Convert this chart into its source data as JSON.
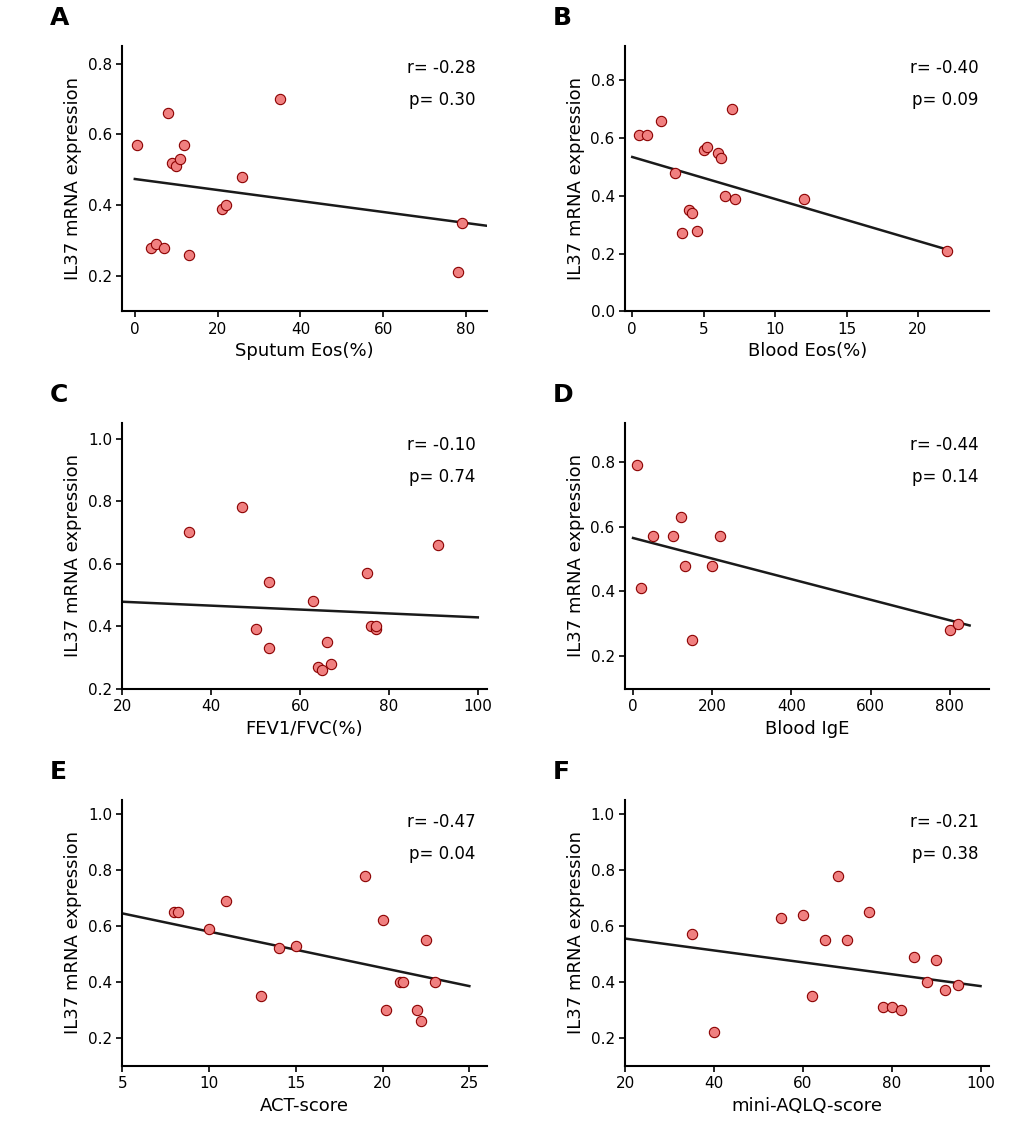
{
  "panels": [
    {
      "label": "A",
      "xlabel": "Sputum Eos(%)",
      "ylabel": "IL37 mRNA expression",
      "r_text": "r= -0.28",
      "p_text": "p= 0.30",
      "xlim": [
        -3,
        85
      ],
      "ylim": [
        0.1,
        0.85
      ],
      "xticks": [
        0,
        20,
        40,
        60,
        80
      ],
      "yticks": [
        0.2,
        0.4,
        0.6,
        0.8
      ],
      "x": [
        0.5,
        4,
        5,
        7,
        8,
        9,
        10,
        11,
        12,
        13,
        21,
        22,
        26,
        35,
        78,
        79
      ],
      "y": [
        0.57,
        0.28,
        0.29,
        0.28,
        0.66,
        0.52,
        0.51,
        0.53,
        0.57,
        0.26,
        0.39,
        0.4,
        0.48,
        0.7,
        0.21,
        0.35
      ],
      "line_x": [
        0,
        85
      ],
      "line_y_start": 0.474,
      "line_y_end": 0.342
    },
    {
      "label": "B",
      "xlabel": "Blood Eos(%)",
      "ylabel": "IL37 mRNA expression",
      "r_text": "r= -0.40",
      "p_text": "p= 0.09",
      "xlim": [
        -0.5,
        25
      ],
      "ylim": [
        0.0,
        0.92
      ],
      "xticks": [
        0,
        5,
        10,
        15,
        20
      ],
      "yticks": [
        0.0,
        0.2,
        0.4,
        0.6,
        0.8
      ],
      "x": [
        0.5,
        1.0,
        2.0,
        3.0,
        3.5,
        4.0,
        4.2,
        4.5,
        5.0,
        5.2,
        6.0,
        6.2,
        6.5,
        7.0,
        7.2,
        12.0,
        22.0
      ],
      "y": [
        0.61,
        0.61,
        0.66,
        0.48,
        0.27,
        0.35,
        0.34,
        0.28,
        0.56,
        0.57,
        0.55,
        0.53,
        0.4,
        0.7,
        0.39,
        0.39,
        0.21
      ],
      "line_x": [
        0,
        22
      ],
      "line_y_start": 0.535,
      "line_y_end": 0.215
    },
    {
      "label": "C",
      "xlabel": "FEV1/FVC(%)",
      "ylabel": "IL37 mRNA expression",
      "r_text": "r= -0.10",
      "p_text": "p= 0.74",
      "xlim": [
        20,
        102
      ],
      "ylim": [
        0.2,
        1.05
      ],
      "xticks": [
        20,
        40,
        60,
        80,
        100
      ],
      "yticks": [
        0.2,
        0.4,
        0.6,
        0.8,
        1.0
      ],
      "x": [
        35,
        47,
        50,
        53,
        53,
        63,
        64,
        65,
        66,
        67,
        75,
        76,
        77,
        77,
        91
      ],
      "y": [
        0.7,
        0.78,
        0.39,
        0.33,
        0.54,
        0.48,
        0.27,
        0.26,
        0.35,
        0.28,
        0.57,
        0.4,
        0.39,
        0.4,
        0.66
      ],
      "line_x": [
        20,
        100
      ],
      "line_y_start": 0.478,
      "line_y_end": 0.428
    },
    {
      "label": "D",
      "xlabel": "Blood IgE",
      "ylabel": "IL37 mRNA expression",
      "r_text": "r= -0.44",
      "p_text": "p= 0.14",
      "xlim": [
        -20,
        900
      ],
      "ylim": [
        0.1,
        0.92
      ],
      "xticks": [
        0,
        200,
        400,
        600,
        800
      ],
      "yticks": [
        0.2,
        0.4,
        0.6,
        0.8
      ],
      "x": [
        10,
        20,
        50,
        100,
        120,
        130,
        150,
        200,
        220,
        800,
        820
      ],
      "y": [
        0.79,
        0.41,
        0.57,
        0.57,
        0.63,
        0.48,
        0.25,
        0.48,
        0.57,
        0.28,
        0.3
      ],
      "line_x": [
        0,
        850
      ],
      "line_y_start": 0.565,
      "line_y_end": 0.295
    },
    {
      "label": "E",
      "xlabel": "ACT-score",
      "ylabel": "IL37 mRNA expression",
      "r_text": "r= -0.47",
      "p_text": "p= 0.04",
      "xlim": [
        5,
        26
      ],
      "ylim": [
        0.1,
        1.05
      ],
      "xticks": [
        5,
        10,
        15,
        20,
        25
      ],
      "yticks": [
        0.2,
        0.4,
        0.6,
        0.8,
        1.0
      ],
      "x": [
        8,
        8.2,
        10,
        11,
        13,
        14,
        15,
        19,
        20,
        20.2,
        21,
        21.2,
        22,
        22.2,
        22.5,
        23
      ],
      "y": [
        0.65,
        0.65,
        0.59,
        0.69,
        0.35,
        0.52,
        0.53,
        0.78,
        0.62,
        0.3,
        0.4,
        0.4,
        0.3,
        0.26,
        0.55,
        0.4
      ],
      "line_x": [
        5,
        25
      ],
      "line_y_start": 0.645,
      "line_y_end": 0.385
    },
    {
      "label": "F",
      "xlabel": "mini-AQLQ-score",
      "ylabel": "IL37 mRNA expression",
      "r_text": "r= -0.21",
      "p_text": "p= 0.38",
      "xlim": [
        20,
        102
      ],
      "ylim": [
        0.1,
        1.05
      ],
      "xticks": [
        20,
        40,
        60,
        80,
        100
      ],
      "yticks": [
        0.2,
        0.4,
        0.6,
        0.8,
        1.0
      ],
      "x": [
        35,
        40,
        55,
        60,
        62,
        65,
        68,
        70,
        75,
        78,
        80,
        82,
        85,
        88,
        90,
        92,
        95
      ],
      "y": [
        0.57,
        0.22,
        0.63,
        0.64,
        0.35,
        0.55,
        0.78,
        0.55,
        0.65,
        0.31,
        0.31,
        0.3,
        0.49,
        0.4,
        0.48,
        0.37,
        0.39
      ],
      "line_x": [
        20,
        100
      ],
      "line_y_start": 0.555,
      "line_y_end": 0.385
    }
  ],
  "dot_facecolor": "#F08080",
  "dot_edgecolor": "#8B0000",
  "dot_size": 55,
  "line_color": "#1a1a1a",
  "line_width": 1.8,
  "font_family": "Arial",
  "label_fontsize": 13,
  "tick_fontsize": 11,
  "annot_fontsize": 12,
  "panel_label_fontsize": 18
}
